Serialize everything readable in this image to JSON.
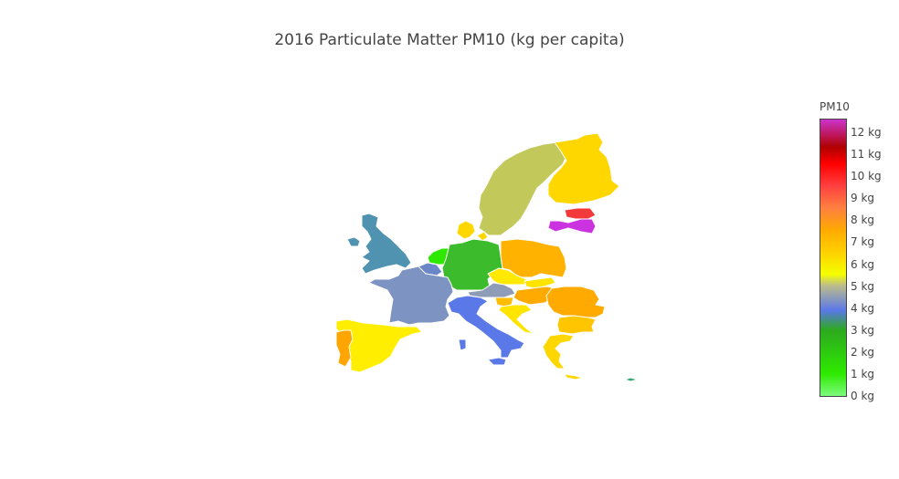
{
  "title": "2016 Particulate Matter PM10 (kg per capita)",
  "legend": {
    "title": "PM10",
    "ticks": [
      "0 kg",
      "1 kg",
      "2 kg",
      "3 kg",
      "4 kg",
      "5 kg",
      "6 kg",
      "7 kg",
      "8 kg",
      "9 kg",
      "10 kg",
      "11 kg",
      "12 kg"
    ],
    "range": [
      0,
      12.5
    ],
    "colorscale": [
      [
        0.0,
        "#7dfa7d"
      ],
      [
        0.08,
        "#2eeb00"
      ],
      [
        0.24,
        "#2da820"
      ],
      [
        0.31,
        "#5a78e8"
      ],
      [
        0.4,
        "#bdbd8a"
      ],
      [
        0.44,
        "#f5ff00"
      ],
      [
        0.52,
        "#ffd100"
      ],
      [
        0.6,
        "#ffaa00"
      ],
      [
        0.68,
        "#ff8040"
      ],
      [
        0.76,
        "#ff4040"
      ],
      [
        0.84,
        "#ff0000"
      ],
      [
        0.9,
        "#b00000"
      ],
      [
        1.0,
        "#cc33cc"
      ]
    ]
  },
  "chart_data": {
    "type": "choropleth",
    "title": "2016 Particulate Matter PM10 (kg per capita)",
    "colorbar_title": "PM10",
    "units": "kg",
    "regions": [
      {
        "name": "Sweden",
        "value": 4.3,
        "color": "#c2c95a"
      },
      {
        "name": "Finland",
        "value": 5.9,
        "color": "#ffd700"
      },
      {
        "name": "Estonia",
        "value": 10.1,
        "color": "#f23a3a"
      },
      {
        "name": "Latvia",
        "value": 12.2,
        "color": "#cc33e0"
      },
      {
        "name": "Denmark",
        "value": 5.9,
        "color": "#ffd700"
      },
      {
        "name": "Ireland",
        "value": 3.3,
        "color": "#4f93b0"
      },
      {
        "name": "United Kingdom",
        "value": 3.3,
        "color": "#4f93b0"
      },
      {
        "name": "Netherlands",
        "value": 1.5,
        "color": "#2ee800"
      },
      {
        "name": "Belgium",
        "value": 3.7,
        "color": "#6a86c8"
      },
      {
        "name": "Germany",
        "value": 2.6,
        "color": "#3cbc2c"
      },
      {
        "name": "Poland",
        "value": 7.0,
        "color": "#ffb300"
      },
      {
        "name": "France",
        "value": 3.8,
        "color": "#7d93c1"
      },
      {
        "name": "Czechia",
        "value": 5.4,
        "color": "#ffe900"
      },
      {
        "name": "Slovakia",
        "value": 5.6,
        "color": "#ffe400"
      },
      {
        "name": "Austria",
        "value": 4.1,
        "color": "#8e9cb8"
      },
      {
        "name": "Hungary",
        "value": 7.2,
        "color": "#ffaa00"
      },
      {
        "name": "Slovenia",
        "value": 6.6,
        "color": "#ffbd00"
      },
      {
        "name": "Croatia",
        "value": 5.6,
        "color": "#ffe400"
      },
      {
        "name": "Romania",
        "value": 7.2,
        "color": "#ffaa00"
      },
      {
        "name": "Bulgaria",
        "value": 6.3,
        "color": "#ffc600"
      },
      {
        "name": "Greece",
        "value": 5.8,
        "color": "#ffd700"
      },
      {
        "name": "Italy",
        "value": 3.6,
        "color": "#5a78e8"
      },
      {
        "name": "Spain",
        "value": 5.3,
        "color": "#ffee00"
      },
      {
        "name": "Portugal",
        "value": 7.2,
        "color": "#ffa500"
      },
      {
        "name": "Cyprus",
        "value": 2.8,
        "color": "#2da870"
      }
    ]
  }
}
